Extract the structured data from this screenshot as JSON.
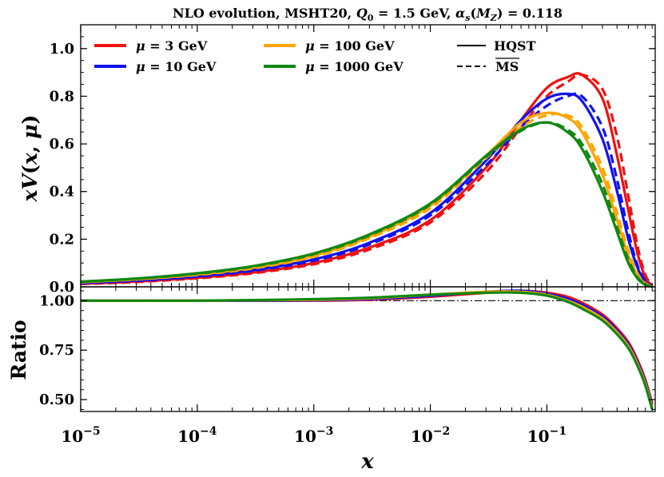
{
  "chart_data": {
    "type": "line",
    "title": "NLO evolution, MSHT20, Q₀ = 1.5 GeV, αₛ(M_Z) = 0.118",
    "title_parts": {
      "prefix": "NLO evolution, MSHT20, ",
      "q0_sym": "Q",
      "q0_sub": "0",
      "q0_val": " = 1.5 GeV, ",
      "alpha_sym": "α",
      "alpha_sub": "s",
      "alpha_arg_open": "(",
      "alpha_arg_sym": "M",
      "alpha_arg_sub": "Z",
      "alpha_val": ") = 0.118"
    },
    "xlabel": "x",
    "xscale": "log",
    "xlim": [
      1e-05,
      0.85
    ],
    "x_ticks": [
      {
        "value": 1e-05,
        "base": "10",
        "exp": "−5"
      },
      {
        "value": 0.0001,
        "base": "10",
        "exp": "−4"
      },
      {
        "value": 0.001,
        "base": "10",
        "exp": "−3"
      },
      {
        "value": 0.01,
        "base": "10",
        "exp": "−2"
      },
      {
        "value": 0.1,
        "base": "10",
        "exp": "−1"
      }
    ],
    "legend_position": "top",
    "legend_line_styles": [
      {
        "label": "HQST",
        "style": "solid"
      },
      {
        "label": "MS",
        "style": "dashed",
        "overline": true
      }
    ],
    "top_panel": {
      "ylabel_parts": {
        "a": "xV",
        "b": "(",
        "c": "x",
        "d": ", ",
        "e": "μ",
        "f": ")"
      },
      "ylim": [
        0.0,
        1.1
      ],
      "y_ticks": [
        "0.0",
        "0.2",
        "0.4",
        "0.6",
        "0.8",
        "1.0"
      ],
      "y_tick_values": [
        0.0,
        0.2,
        0.4,
        0.6,
        0.8,
        1.0
      ]
    },
    "bottom_panel": {
      "ylabel": "Ratio",
      "ylim": [
        0.44,
        1.07
      ],
      "y_ticks": [
        "0.50",
        "0.75",
        "1.00"
      ],
      "y_tick_values": [
        0.5,
        0.75,
        1.0
      ],
      "reference_line": 1.0
    },
    "series": [
      {
        "name": "μ = 3 GeV",
        "legend_sym": "μ",
        "legend_val": " = 3 GeV",
        "color": "#ee1111",
        "x": [
          1e-05,
          3e-05,
          0.0001,
          0.0003,
          0.001,
          0.003,
          0.01,
          0.03,
          0.06,
          0.1,
          0.15,
          0.2,
          0.3,
          0.4,
          0.5,
          0.6,
          0.7,
          0.8
        ],
        "hqst": [
          0.013,
          0.022,
          0.038,
          0.06,
          0.1,
          0.165,
          0.28,
          0.5,
          0.7,
          0.835,
          0.88,
          0.89,
          0.79,
          0.55,
          0.32,
          0.14,
          0.04,
          0.005
        ],
        "msbar": [
          0.012,
          0.02,
          0.036,
          0.057,
          0.095,
          0.157,
          0.27,
          0.48,
          0.67,
          0.8,
          0.86,
          0.89,
          0.83,
          0.63,
          0.38,
          0.17,
          0.05,
          0.006
        ],
        "ratio": [
          1.0,
          1.0,
          1.0,
          1.0,
          1.0,
          1.005,
          1.02,
          1.04,
          1.05,
          1.04,
          1.02,
          0.99,
          0.93,
          0.86,
          0.79,
          0.7,
          0.6,
          0.48
        ]
      },
      {
        "name": "μ = 10 GeV",
        "legend_sym": "μ",
        "legend_val": " = 10 GeV",
        "color": "#1111ee",
        "x": [
          1e-05,
          3e-05,
          0.0001,
          0.0003,
          0.001,
          0.003,
          0.01,
          0.03,
          0.06,
          0.1,
          0.15,
          0.2,
          0.3,
          0.4,
          0.5,
          0.6,
          0.7,
          0.8
        ],
        "hqst": [
          0.016,
          0.027,
          0.045,
          0.07,
          0.115,
          0.185,
          0.31,
          0.53,
          0.7,
          0.79,
          0.81,
          0.78,
          0.62,
          0.4,
          0.2,
          0.08,
          0.02,
          0.003
        ],
        "msbar": [
          0.015,
          0.025,
          0.043,
          0.067,
          0.11,
          0.178,
          0.3,
          0.51,
          0.67,
          0.76,
          0.8,
          0.8,
          0.67,
          0.45,
          0.23,
          0.09,
          0.025,
          0.004
        ],
        "ratio": [
          1.0,
          1.0,
          1.0,
          1.0,
          1.002,
          1.008,
          1.025,
          1.045,
          1.05,
          1.035,
          1.01,
          0.98,
          0.92,
          0.85,
          0.78,
          0.69,
          0.59,
          0.47
        ]
      },
      {
        "name": "μ = 100 GeV",
        "legend_sym": "μ",
        "legend_val": " = 100 GeV",
        "color": "#ffa500",
        "x": [
          1e-05,
          3e-05,
          0.0001,
          0.0003,
          0.001,
          0.003,
          0.01,
          0.03,
          0.06,
          0.1,
          0.15,
          0.2,
          0.3,
          0.4,
          0.5,
          0.6,
          0.7,
          0.8
        ],
        "hqst": [
          0.02,
          0.032,
          0.052,
          0.08,
          0.13,
          0.21,
          0.34,
          0.55,
          0.69,
          0.73,
          0.71,
          0.65,
          0.47,
          0.28,
          0.13,
          0.05,
          0.012,
          0.002
        ],
        "msbar": [
          0.019,
          0.031,
          0.05,
          0.077,
          0.126,
          0.204,
          0.33,
          0.54,
          0.67,
          0.72,
          0.72,
          0.67,
          0.5,
          0.31,
          0.15,
          0.055,
          0.015,
          0.002
        ],
        "ratio": [
          1.0,
          1.0,
          1.0,
          1.002,
          1.005,
          1.012,
          1.03,
          1.045,
          1.045,
          1.03,
          1.0,
          0.97,
          0.91,
          0.84,
          0.77,
          0.68,
          0.58,
          0.46
        ]
      },
      {
        "name": "μ = 1000 GeV",
        "legend_sym": "μ",
        "legend_val": " = 1000 GeV",
        "color": "#118811",
        "x": [
          1e-05,
          3e-05,
          0.0001,
          0.0003,
          0.001,
          0.003,
          0.01,
          0.03,
          0.06,
          0.1,
          0.15,
          0.2,
          0.3,
          0.4,
          0.5,
          0.6,
          0.7,
          0.8
        ],
        "hqst": [
          0.022,
          0.035,
          0.057,
          0.087,
          0.14,
          0.22,
          0.35,
          0.55,
          0.66,
          0.69,
          0.65,
          0.58,
          0.4,
          0.23,
          0.1,
          0.035,
          0.008,
          0.001
        ],
        "msbar": [
          0.021,
          0.034,
          0.055,
          0.085,
          0.137,
          0.216,
          0.345,
          0.545,
          0.655,
          0.69,
          0.66,
          0.6,
          0.43,
          0.25,
          0.115,
          0.04,
          0.01,
          0.001
        ],
        "ratio": [
          1.0,
          1.0,
          1.0,
          1.003,
          1.008,
          1.015,
          1.03,
          1.04,
          1.04,
          1.025,
          0.995,
          0.96,
          0.9,
          0.83,
          0.76,
          0.67,
          0.57,
          0.45
        ]
      }
    ]
  }
}
